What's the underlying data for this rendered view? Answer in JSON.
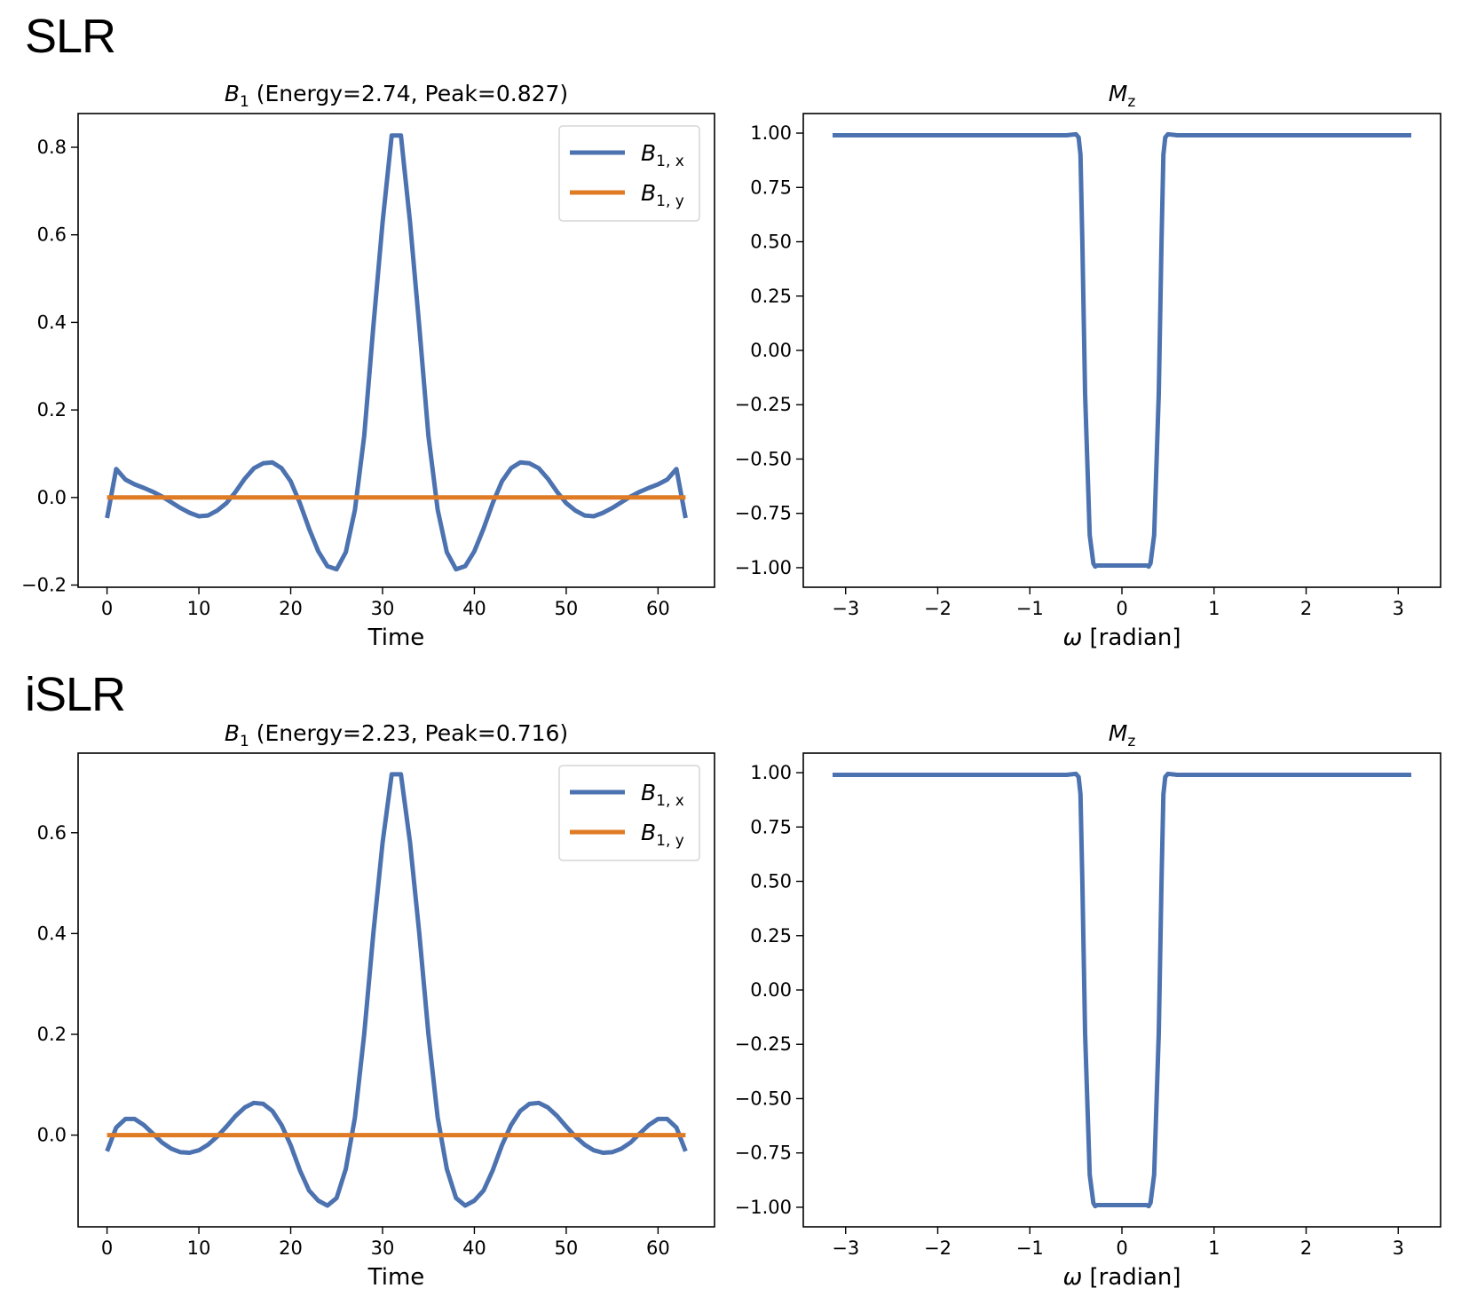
{
  "sections": [
    {
      "label": "SLR"
    },
    {
      "label": "iSLR"
    }
  ],
  "colors": {
    "bx": "#4c72b0",
    "by": "#e07b25",
    "mz": "#4c72b0"
  },
  "chart_data": [
    {
      "id": "slr-b1",
      "type": "line",
      "title_main": "B",
      "title_sub": "1",
      "title_rest": " (Energy=2.74, Peak=0.827)",
      "energy": 2.74,
      "peak": 0.827,
      "xlabel": "Time",
      "ylabel": "",
      "xlim": [
        -3.15,
        66.15
      ],
      "ylim": [
        -0.205,
        0.877
      ],
      "xticks": [
        0,
        10,
        20,
        30,
        40,
        50,
        60
      ],
      "xtick_labels": [
        "0",
        "10",
        "20",
        "30",
        "40",
        "50",
        "60"
      ],
      "yticks": [
        -0.2,
        0.0,
        0.2,
        0.4,
        0.6,
        0.8
      ],
      "ytick_labels": [
        "−0.2",
        "0.0",
        "0.2",
        "0.4",
        "0.6",
        "0.8"
      ],
      "grid": false,
      "legend": {
        "position": "top-right",
        "entries": [
          {
            "main": "B",
            "sub": "1, x"
          },
          {
            "main": "B",
            "sub": "1, y"
          }
        ]
      },
      "series": [
        {
          "name": "B1,x",
          "color_key": "bx",
          "x_start": 0,
          "x_step": 1,
          "values": [
            -0.047,
            0.065,
            0.041,
            0.03,
            0.022,
            0.013,
            0.002,
            -0.011,
            -0.024,
            -0.035,
            -0.043,
            -0.041,
            -0.03,
            -0.013,
            0.013,
            0.043,
            0.067,
            0.078,
            0.08,
            0.067,
            0.037,
            -0.013,
            -0.071,
            -0.123,
            -0.157,
            -0.164,
            -0.125,
            -0.028,
            0.14,
            0.39,
            0.628,
            0.827,
            0.827,
            0.628,
            0.39,
            0.14,
            -0.028,
            -0.125,
            -0.164,
            -0.157,
            -0.123,
            -0.071,
            -0.013,
            0.037,
            0.067,
            0.08,
            0.078,
            0.067,
            0.043,
            0.013,
            -0.013,
            -0.03,
            -0.041,
            -0.043,
            -0.035,
            -0.024,
            -0.011,
            0.002,
            0.013,
            0.022,
            0.03,
            0.041,
            0.065,
            -0.047
          ]
        },
        {
          "name": "B1,y",
          "color_key": "by",
          "x_start": 0,
          "x_step": 1,
          "constant": 0.0,
          "count": 64
        }
      ]
    },
    {
      "id": "slr-mz",
      "type": "line",
      "title_main": "M",
      "title_sub": "z",
      "title_rest": "",
      "xlabel_sym": "ω",
      "xlabel": " [radian]",
      "ylabel": "",
      "xlim": [
        -3.46,
        3.46
      ],
      "ylim": [
        -1.09,
        1.09
      ],
      "xticks": [
        -3,
        -2,
        -1,
        0,
        1,
        2,
        3
      ],
      "xtick_labels": [
        "−3",
        "−2",
        "−1",
        "0",
        "1",
        "2",
        "3"
      ],
      "yticks": [
        1.0,
        0.75,
        0.5,
        0.25,
        0.0,
        -0.25,
        -0.5,
        -0.75,
        -1.0
      ],
      "ytick_labels": [
        "1.00",
        "0.75",
        "0.50",
        "0.25",
        "0.00",
        "−0.25",
        "−0.50",
        "−0.75",
        "−1.00"
      ],
      "grid": false,
      "series": [
        {
          "name": "Mz",
          "color_key": "mz",
          "x": [
            -3.1416,
            -0.6,
            -0.5,
            -0.47,
            -0.45,
            -0.43,
            -0.4,
            -0.35,
            -0.31,
            -0.29,
            -0.27,
            0.27,
            0.29,
            0.31,
            0.35,
            0.4,
            0.43,
            0.45,
            0.47,
            0.5,
            0.6,
            3.1416
          ],
          "y": [
            0.99,
            0.99,
            0.995,
            0.98,
            0.9,
            0.5,
            -0.2,
            -0.85,
            -0.98,
            -0.995,
            -0.99,
            -0.99,
            -0.995,
            -0.98,
            -0.85,
            -0.2,
            0.5,
            0.9,
            0.98,
            0.995,
            0.99,
            0.99
          ]
        }
      ]
    },
    {
      "id": "islr-b1",
      "type": "line",
      "title_main": "B",
      "title_sub": "1",
      "title_rest": " (Energy=2.23, Peak=0.716)",
      "energy": 2.23,
      "peak": 0.716,
      "xlabel": "Time",
      "ylabel": "",
      "xlim": [
        -3.15,
        66.15
      ],
      "ylim": [
        -0.182,
        0.758
      ],
      "xticks": [
        0,
        10,
        20,
        30,
        40,
        50,
        60
      ],
      "xtick_labels": [
        "0",
        "10",
        "20",
        "30",
        "40",
        "50",
        "60"
      ],
      "yticks": [
        0.0,
        0.2,
        0.4,
        0.6
      ],
      "ytick_labels": [
        "0.0",
        "0.2",
        "0.4",
        "0.6"
      ],
      "grid": false,
      "legend": {
        "position": "top-right",
        "entries": [
          {
            "main": "B",
            "sub": "1, x"
          },
          {
            "main": "B",
            "sub": "1, y"
          }
        ]
      },
      "series": [
        {
          "name": "B1,x",
          "color_key": "bx",
          "x_start": 0,
          "x_step": 1,
          "values": [
            -0.032,
            0.015,
            0.032,
            0.032,
            0.02,
            0.003,
            -0.015,
            -0.027,
            -0.034,
            -0.035,
            -0.03,
            -0.019,
            -0.003,
            0.017,
            0.038,
            0.055,
            0.064,
            0.062,
            0.048,
            0.02,
            -0.02,
            -0.07,
            -0.11,
            -0.13,
            -0.14,
            -0.125,
            -0.067,
            0.035,
            0.2,
            0.4,
            0.58,
            0.716,
            0.716,
            0.58,
            0.4,
            0.2,
            0.035,
            -0.067,
            -0.125,
            -0.14,
            -0.13,
            -0.11,
            -0.07,
            -0.02,
            0.02,
            0.048,
            0.062,
            0.064,
            0.055,
            0.038,
            0.017,
            -0.003,
            -0.019,
            -0.03,
            -0.035,
            -0.034,
            -0.027,
            -0.015,
            0.003,
            0.02,
            0.032,
            0.032,
            0.015,
            -0.032
          ]
        },
        {
          "name": "B1,y",
          "color_key": "by",
          "x_start": 0,
          "x_step": 1,
          "constant": 0.0,
          "count": 64
        }
      ]
    },
    {
      "id": "islr-mz",
      "type": "line",
      "title_main": "M",
      "title_sub": "z",
      "title_rest": "",
      "xlabel_sym": "ω",
      "xlabel": " [radian]",
      "ylabel": "",
      "xlim": [
        -3.46,
        3.46
      ],
      "ylim": [
        -1.09,
        1.09
      ],
      "xticks": [
        -3,
        -2,
        -1,
        0,
        1,
        2,
        3
      ],
      "xtick_labels": [
        "−3",
        "−2",
        "−1",
        "0",
        "1",
        "2",
        "3"
      ],
      "yticks": [
        1.0,
        0.75,
        0.5,
        0.25,
        0.0,
        -0.25,
        -0.5,
        -0.75,
        -1.0
      ],
      "ytick_labels": [
        "1.00",
        "0.75",
        "0.50",
        "0.25",
        "0.00",
        "−0.25",
        "−0.50",
        "−0.75",
        "−1.00"
      ],
      "grid": false,
      "series": [
        {
          "name": "Mz",
          "color_key": "mz",
          "x": [
            -3.1416,
            -0.6,
            -0.5,
            -0.47,
            -0.45,
            -0.43,
            -0.4,
            -0.35,
            -0.31,
            -0.29,
            -0.27,
            0.27,
            0.29,
            0.31,
            0.35,
            0.4,
            0.43,
            0.45,
            0.47,
            0.5,
            0.6,
            3.1416
          ],
          "y": [
            0.99,
            0.99,
            0.995,
            0.98,
            0.9,
            0.5,
            -0.2,
            -0.85,
            -0.98,
            -0.995,
            -0.99,
            -0.99,
            -0.995,
            -0.98,
            -0.85,
            -0.2,
            0.5,
            0.9,
            0.98,
            0.995,
            0.99,
            0.99
          ]
        }
      ]
    }
  ]
}
